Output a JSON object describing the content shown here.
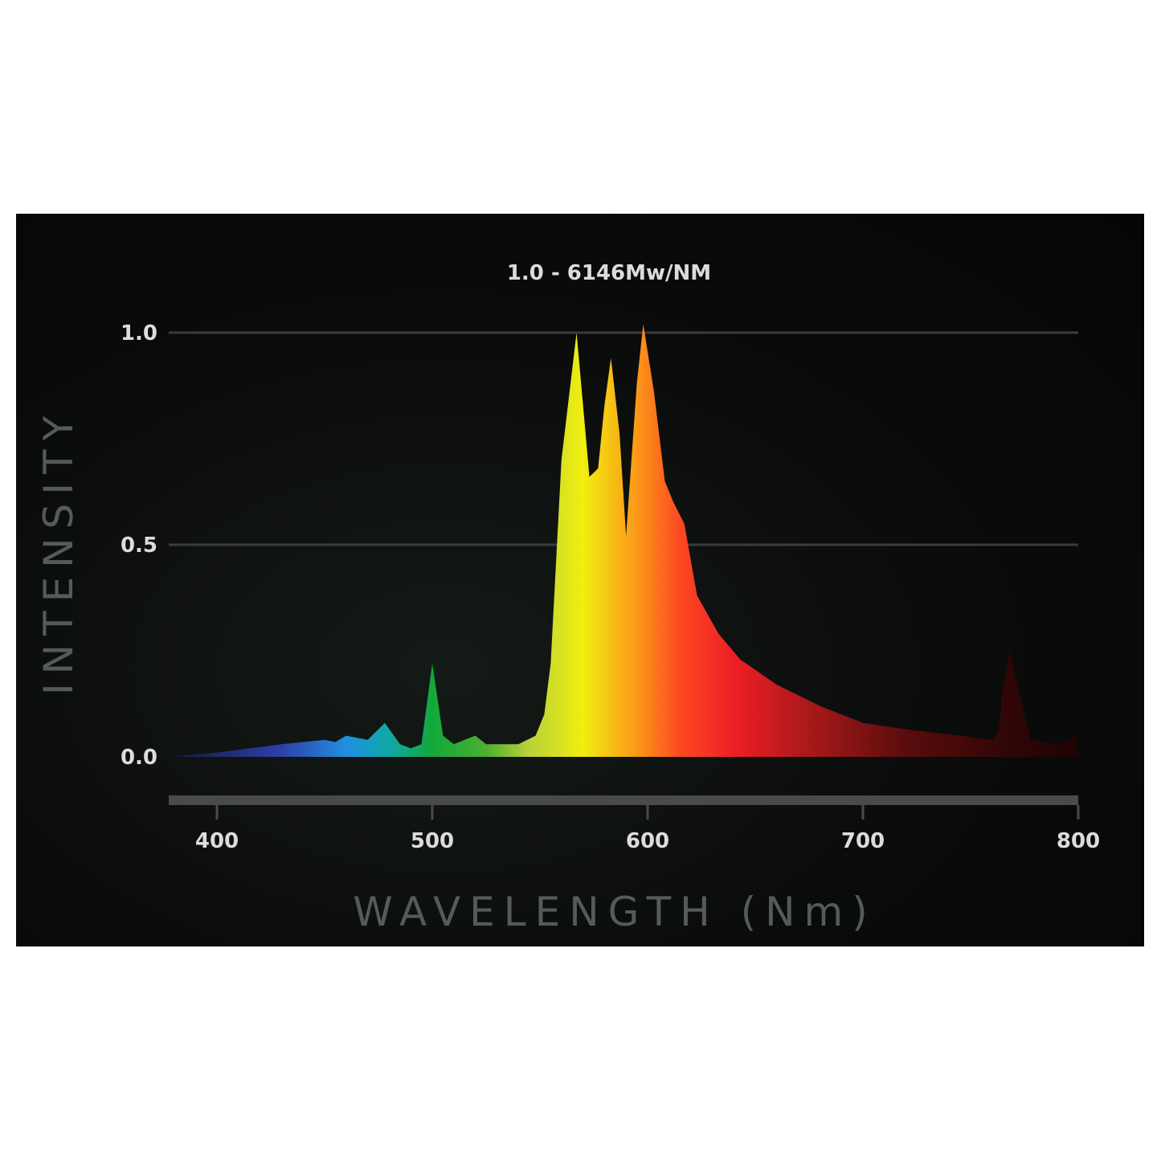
{
  "chart_data": {
    "type": "area",
    "title": "1.0 - 6146Mw/NM",
    "xlabel": "WAVELENGTH (Nm)",
    "ylabel": "INTENSITY",
    "xlim": [
      377,
      800
    ],
    "ylim": [
      0,
      1.0
    ],
    "x_ticks": [
      400,
      500,
      600,
      700,
      800
    ],
    "x_tick_labels": [
      "400",
      "500",
      "600",
      "700",
      "800"
    ],
    "y_ticks": [
      0.0,
      0.5,
      1.0
    ],
    "y_tick_labels": [
      "0.0",
      "0.5",
      "1.0"
    ],
    "grid": true,
    "legend": "none",
    "series": [
      {
        "x": [
          377,
          400,
          430,
          450,
          455,
          460,
          465,
          470,
          478,
          485,
          490,
          495,
          500,
          505,
          510,
          515,
          520,
          525,
          540,
          548,
          552,
          555,
          560,
          567,
          573,
          577,
          580,
          583,
          587,
          590,
          595,
          598,
          603,
          608,
          612,
          617,
          623,
          633,
          643,
          660,
          680,
          700,
          720,
          745,
          760,
          763,
          765,
          768,
          775,
          778,
          790,
          800
        ],
        "y": [
          0.0,
          0.01,
          0.03,
          0.04,
          0.035,
          0.05,
          0.045,
          0.04,
          0.08,
          0.03,
          0.02,
          0.03,
          0.22,
          0.05,
          0.03,
          0.04,
          0.05,
          0.03,
          0.03,
          0.05,
          0.1,
          0.22,
          0.7,
          1.0,
          0.66,
          0.68,
          0.83,
          0.94,
          0.76,
          0.52,
          0.88,
          1.02,
          0.86,
          0.65,
          0.6,
          0.55,
          0.38,
          0.29,
          0.23,
          0.17,
          0.12,
          0.08,
          0.065,
          0.05,
          0.04,
          0.06,
          0.16,
          0.25,
          0.1,
          0.04,
          0.03,
          0.05
        ]
      }
    ],
    "colors": {
      "panel": "#0a0b0b",
      "grid": "#3a3c3c",
      "axis_bar": "#4a4a4a",
      "tick_text": "#dcdcdc",
      "axis_title": "#555b58",
      "spectrum_stops": [
        {
          "x": 380,
          "color": "#141a44"
        },
        {
          "x": 430,
          "color": "#2f3fa8"
        },
        {
          "x": 460,
          "color": "#1f8fe0"
        },
        {
          "x": 480,
          "color": "#10a8a8"
        },
        {
          "x": 500,
          "color": "#13a83a"
        },
        {
          "x": 525,
          "color": "#4cb030"
        },
        {
          "x": 545,
          "color": "#b8d23a"
        },
        {
          "x": 570,
          "color": "#f1ee10"
        },
        {
          "x": 595,
          "color": "#fb9818"
        },
        {
          "x": 615,
          "color": "#fc4a22"
        },
        {
          "x": 640,
          "color": "#ee1e26"
        },
        {
          "x": 680,
          "color": "#a01818"
        },
        {
          "x": 720,
          "color": "#5a0c0c"
        },
        {
          "x": 770,
          "color": "#2e0606"
        },
        {
          "x": 800,
          "color": "#200404"
        }
      ]
    }
  }
}
